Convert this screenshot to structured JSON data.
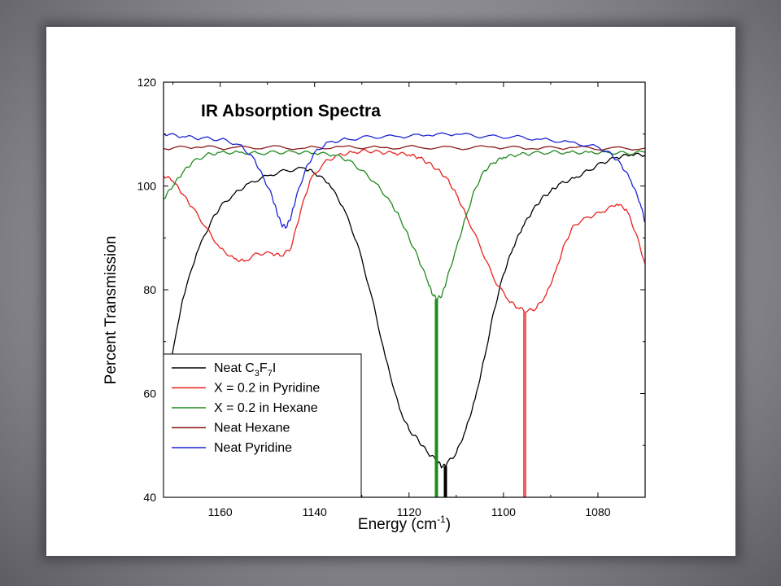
{
  "chart_data": {
    "type": "line",
    "title": "IR Absorption Spectra",
    "xlabel": {
      "text": "Energy (cm",
      "sup": "-1",
      "suffix": ")"
    },
    "ylabel": "Percent Transmission",
    "xlim": [
      1172,
      1070
    ],
    "ylim": [
      40,
      120
    ],
    "x_ticks": [
      1160,
      1140,
      1120,
      1100,
      1080
    ],
    "y_ticks": [
      40,
      60,
      80,
      100,
      120
    ],
    "grid": false,
    "legend_position": "bottom-left",
    "series": [
      {
        "name": "Neat C3F7I",
        "legend": {
          "base": "Neat C",
          "sub1": "3",
          "mid": "F",
          "sub2": "7",
          "end": "I"
        },
        "color": "#000000",
        "x": [
          1172,
          1168,
          1165,
          1162,
          1160,
          1157,
          1154,
          1150,
          1146,
          1142,
          1140,
          1137,
          1134,
          1131,
          1128,
          1125,
          1122,
          1120,
          1118,
          1116,
          1114,
          1113,
          1112,
          1110,
          1108,
          1106,
          1104,
          1102,
          1100,
          1098,
          1096,
          1094,
          1092,
          1090,
          1088,
          1085,
          1082,
          1079,
          1076,
          1073,
          1070
        ],
        "y": [
          58,
          78,
          87,
          93,
          96,
          98.5,
          100.5,
          102,
          103,
          103.4,
          102.5,
          100.5,
          96,
          89,
          79,
          67,
          57,
          53,
          51,
          48.5,
          47,
          45.8,
          46.5,
          48.5,
          53,
          59,
          67,
          76,
          83,
          88,
          92,
          95,
          97.5,
          99,
          100.5,
          101.5,
          103,
          104.5,
          105.5,
          106,
          106
        ]
      },
      {
        "name": "X = 0.2 in Pyridine",
        "color": "#e8221e",
        "x": [
          1172,
          1170,
          1168,
          1166,
          1163,
          1160,
          1157,
          1155,
          1152,
          1149,
          1147,
          1145,
          1143,
          1141,
          1138,
          1135,
          1132,
          1129,
          1126,
          1123,
          1120,
          1118,
          1116,
          1114,
          1112,
          1110,
          1108,
          1105,
          1102,
          1099,
          1097,
          1095,
          1093,
          1091,
          1089,
          1087,
          1085,
          1082,
          1079,
          1076,
          1074,
          1072,
          1070
        ],
        "y": [
          102,
          101,
          98.5,
          96,
          92,
          88,
          86,
          85.5,
          87,
          87,
          86.5,
          88,
          95,
          101,
          104.5,
          106,
          106.5,
          106.8,
          106.5,
          106.3,
          106,
          105.5,
          104.5,
          103.2,
          101.5,
          98.5,
          94.5,
          88.5,
          82,
          78,
          76.5,
          75.8,
          76.5,
          79,
          83.5,
          89,
          92.5,
          94,
          95,
          96.5,
          95.5,
          91,
          85
        ]
      },
      {
        "name": "X = 0.2 in Hexane",
        "color": "#1f8a1f",
        "x": [
          1172,
          1170,
          1168,
          1166,
          1163,
          1160,
          1156,
          1152,
          1148,
          1144,
          1140,
          1136,
          1133,
          1130,
          1127,
          1124,
          1122,
          1120,
          1118,
          1116,
          1115,
          1114,
          1113,
          1112,
          1110,
          1108,
          1106,
          1104,
          1102,
          1100,
          1097,
          1094,
          1090,
          1086,
          1082,
          1078,
          1074,
          1070
        ],
        "y": [
          97.5,
          100,
          102.5,
          104.5,
          106,
          106.5,
          106.5,
          106.3,
          106.5,
          106.5,
          106.3,
          106,
          105,
          103,
          100.5,
          97,
          94,
          90,
          86,
          81.5,
          79,
          78.2,
          79,
          82,
          88,
          94,
          99.5,
          103,
          104.5,
          105.5,
          106,
          106.3,
          106.5,
          106.5,
          106.5,
          106.5,
          106.3,
          106.5
        ]
      },
      {
        "name": "Neat Hexane",
        "color": "#8b1a1a",
        "x": [
          1172,
          1165,
          1158,
          1150,
          1142,
          1134,
          1126,
          1118,
          1110,
          1102,
          1094,
          1086,
          1078,
          1070
        ],
        "y": [
          107.2,
          107.5,
          107.3,
          107.5,
          107.3,
          107.6,
          107.4,
          107.5,
          107.3,
          107.5,
          107.2,
          107.4,
          107.2,
          107.3
        ]
      },
      {
        "name": "Neat Pyridine",
        "color": "#1c24d6",
        "x": [
          1172,
          1168,
          1164,
          1160,
          1156,
          1153,
          1151,
          1149,
          1148,
          1147,
          1146,
          1145,
          1144,
          1142,
          1140,
          1137,
          1133,
          1128,
          1122,
          1116,
          1110,
          1104,
          1098,
          1092,
          1086,
          1080,
          1077,
          1075,
          1073,
          1071,
          1070
        ],
        "y": [
          110,
          109.5,
          109.2,
          109,
          108,
          105.5,
          102,
          98,
          95,
          92.5,
          92,
          94,
          97.5,
          103,
          106.5,
          108.5,
          109,
          109.5,
          109.5,
          109.8,
          110,
          109.5,
          109.5,
          109,
          108.5,
          107.5,
          106,
          104,
          101,
          96.5,
          93
        ]
      }
    ],
    "markers": [
      {
        "x": 1114.2,
        "y_top": 78.2,
        "color": "#1f8a1f"
      },
      {
        "x": 1112.3,
        "y_top": 46,
        "color": "#000000"
      },
      {
        "x": 1095.5,
        "y_top": 75.8,
        "color": "#f06060"
      }
    ]
  }
}
